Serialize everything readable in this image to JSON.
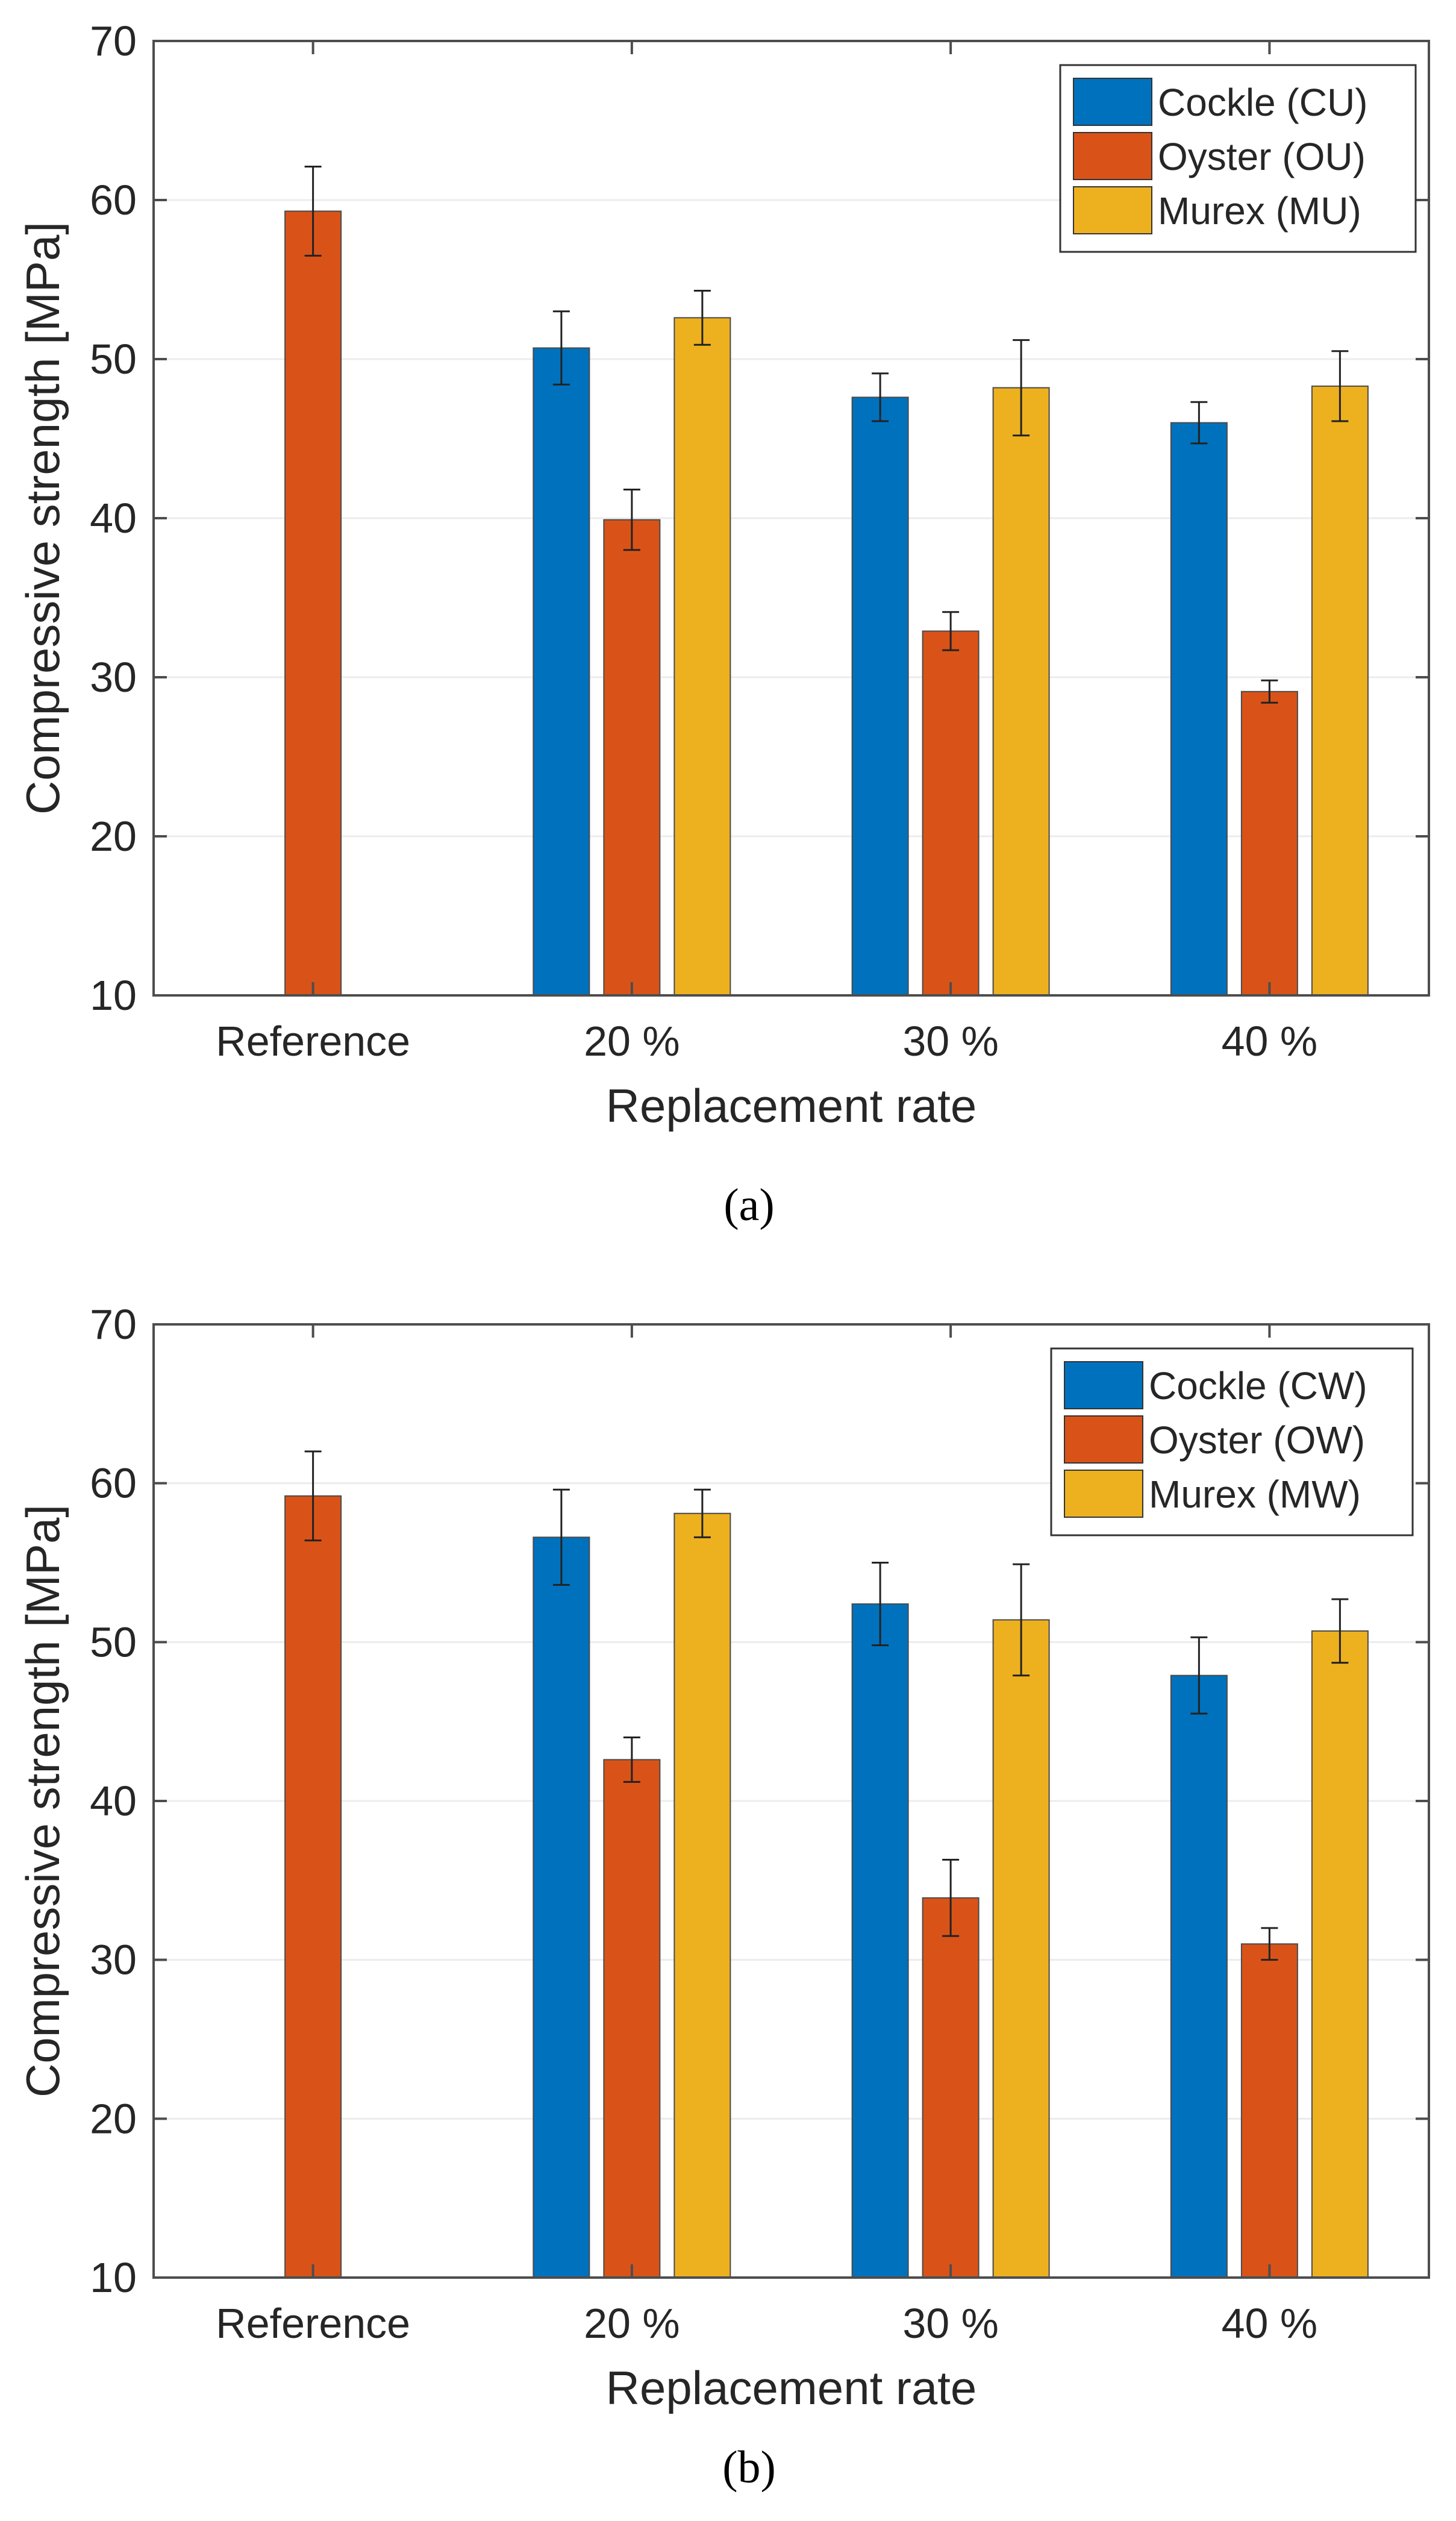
{
  "chart_data": [
    {
      "type": "bar",
      "panel": "(a)",
      "xlabel": "Replacement rate",
      "ylabel": "Compressive strength [MPa]",
      "ylim": [
        10,
        70
      ],
      "yticks": [
        10,
        20,
        30,
        40,
        50,
        60,
        70
      ],
      "grid": true,
      "legend_position": "top-right",
      "categories": [
        "Reference",
        "20 %",
        "30 %",
        "40 %"
      ],
      "series": [
        {
          "name": "Cockle (CU)",
          "color": "#0072BD",
          "values": [
            null,
            50.7,
            47.6,
            46.0
          ],
          "errors": [
            null,
            2.3,
            1.5,
            1.3
          ]
        },
        {
          "name": "Oyster (OU)",
          "color": "#D95319",
          "values": [
            59.3,
            39.9,
            32.9,
            29.1
          ],
          "errors": [
            2.8,
            1.9,
            1.2,
            0.7
          ]
        },
        {
          "name": "Murex (MU)",
          "color": "#EDB120",
          "values": [
            null,
            52.6,
            48.2,
            48.3
          ],
          "errors": [
            null,
            1.7,
            3.0,
            2.2
          ]
        }
      ]
    },
    {
      "type": "bar",
      "panel": "(b)",
      "xlabel": "Replacement rate",
      "ylabel": "Compressive strength [MPa]",
      "ylim": [
        10,
        70
      ],
      "yticks": [
        10,
        20,
        30,
        40,
        50,
        60,
        70
      ],
      "grid": true,
      "legend_position": "top-right",
      "categories": [
        "Reference",
        "20 %",
        "30 %",
        "40 %"
      ],
      "series": [
        {
          "name": "Cockle (CW)",
          "color": "#0072BD",
          "values": [
            null,
            56.6,
            52.4,
            47.9
          ],
          "errors": [
            null,
            3.0,
            2.6,
            2.4
          ]
        },
        {
          "name": "Oyster (OW)",
          "color": "#D95319",
          "values": [
            59.2,
            42.6,
            33.9,
            31.0
          ],
          "errors": [
            2.8,
            1.4,
            2.4,
            1.0
          ]
        },
        {
          "name": "Murex (MW)",
          "color": "#EDB120",
          "values": [
            null,
            58.1,
            51.4,
            50.7
          ],
          "errors": [
            null,
            1.5,
            3.5,
            2.0
          ]
        }
      ]
    }
  ]
}
